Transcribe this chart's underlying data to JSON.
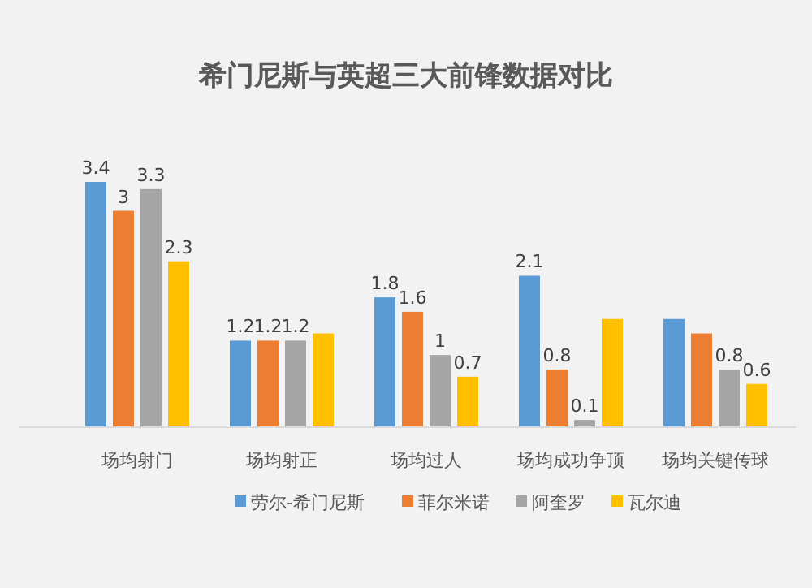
{
  "chart_data": {
    "type": "bar",
    "title": "希门尼斯与英超三大前锋数据对比",
    "categories": [
      "场均射门",
      "场均射正",
      "场均过人",
      "场均成功争顶",
      "场均关键传球"
    ],
    "legend": "bottom",
    "series": [
      {
        "name": "劳尔-希门尼斯",
        "color": "#5b9bd5",
        "values": [
          3.4,
          1.2,
          1.8,
          2.1,
          1.5
        ],
        "value_labels": [
          "3.4",
          "1.2",
          "1.8",
          "2.1",
          null
        ]
      },
      {
        "name": "菲尔米诺",
        "color": "#ed7d31",
        "values": [
          3,
          1.2,
          1.6,
          0.8,
          1.3
        ],
        "value_labels": [
          "3",
          "1.2",
          "1.6",
          "0.8",
          null
        ]
      },
      {
        "name": "阿奎罗",
        "color": "#a5a5a5",
        "values": [
          3.3,
          1.2,
          1,
          0.1,
          0.8
        ],
        "value_labels": [
          "3.3",
          "1.2",
          "1",
          "0.1",
          "0.8"
        ]
      },
      {
        "name": "瓦尔迪",
        "color": "#ffc000",
        "values": [
          2.3,
          1.3,
          0.7,
          1.5,
          0.6
        ],
        "value_labels": [
          "2.3",
          null,
          "0.7",
          null,
          "0.6"
        ]
      }
    ]
  }
}
